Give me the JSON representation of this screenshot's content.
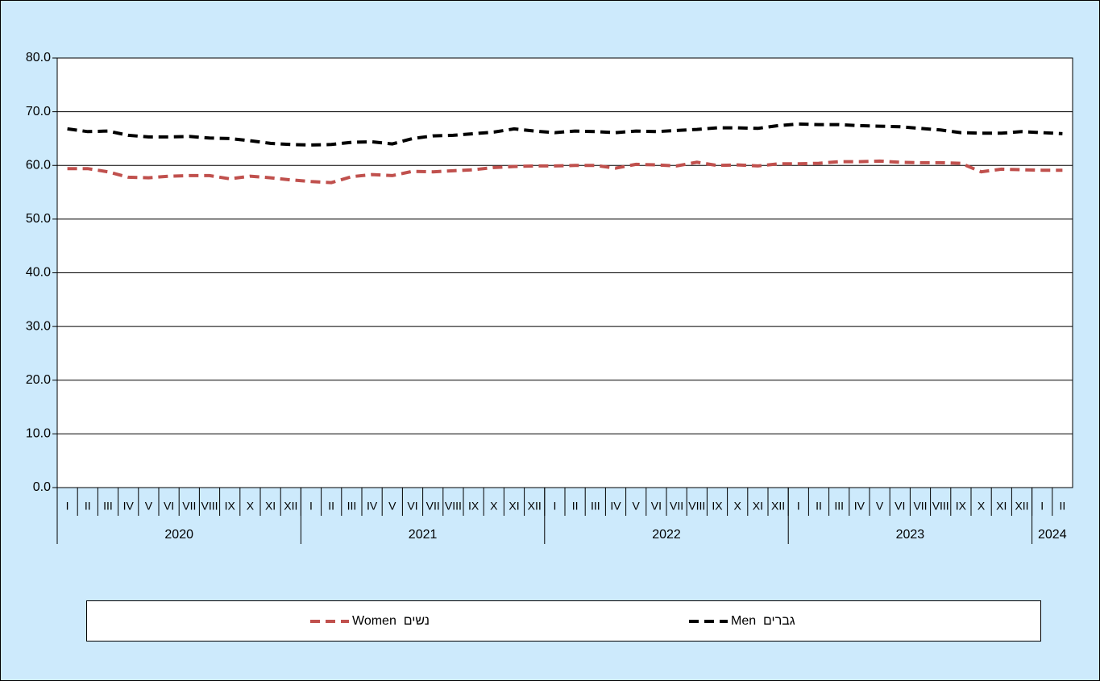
{
  "chart_data": {
    "type": "line",
    "categories": [
      "I",
      "II",
      "III",
      "IV",
      "V",
      "VI",
      "VII",
      "VIII",
      "IX",
      "X",
      "XI",
      "XII",
      "I",
      "II",
      "III",
      "IV",
      "V",
      "VI",
      "VII",
      "VIII",
      "IX",
      "X",
      "XI",
      "XII",
      "I",
      "II",
      "III",
      "IV",
      "V",
      "VI",
      "VII",
      "VIII",
      "IX",
      "X",
      "XI",
      "XII",
      "I",
      "II",
      "III",
      "IV",
      "V",
      "VI",
      "VII",
      "VIII",
      "IX",
      "X",
      "XI",
      "XII",
      "I",
      "II"
    ],
    "category_groups": [
      {
        "label": "2020",
        "span": 12
      },
      {
        "label": "2021",
        "span": 12
      },
      {
        "label": "2022",
        "span": 12
      },
      {
        "label": "2023",
        "span": 12
      },
      {
        "label": "2024",
        "span": 2
      }
    ],
    "series": [
      {
        "name": "Women  נשים",
        "color": "#c0504d",
        "values": [
          59.4,
          59.4,
          58.8,
          57.8,
          57.7,
          58.0,
          58.1,
          58.1,
          57.5,
          58.0,
          57.7,
          57.3,
          57.0,
          56.8,
          57.9,
          58.3,
          58.1,
          58.9,
          58.8,
          59.0,
          59.2,
          59.6,
          59.8,
          59.9,
          59.9,
          60.0,
          60.0,
          59.5,
          60.2,
          60.1,
          59.9,
          60.6,
          60.0,
          60.1,
          59.9,
          60.3,
          60.3,
          60.4,
          60.7,
          60.7,
          60.8,
          60.6,
          60.5,
          60.5,
          60.4,
          58.8,
          59.3,
          59.2,
          59.1,
          59.1
        ]
      },
      {
        "name": "Men  גברים",
        "color": "#000000",
        "values": [
          66.8,
          66.3,
          66.4,
          65.6,
          65.3,
          65.3,
          65.4,
          65.1,
          65.0,
          64.6,
          64.1,
          63.9,
          63.8,
          63.9,
          64.3,
          64.4,
          64.0,
          65.0,
          65.5,
          65.6,
          65.9,
          66.2,
          66.8,
          66.4,
          66.1,
          66.4,
          66.3,
          66.1,
          66.4,
          66.3,
          66.5,
          66.7,
          67.0,
          67.0,
          66.9,
          67.4,
          67.7,
          67.6,
          67.6,
          67.4,
          67.3,
          67.2,
          66.9,
          66.6,
          66.1,
          66.0,
          66.0,
          66.3,
          66.1,
          65.9
        ]
      }
    ],
    "ylim": [
      0,
      80
    ],
    "yticks": [
      {
        "value": 0,
        "label": "0.0"
      },
      {
        "value": 10,
        "label": "10.0"
      },
      {
        "value": 20,
        "label": "20.0"
      },
      {
        "value": 30,
        "label": "30.0"
      },
      {
        "value": 40,
        "label": "40.0"
      },
      {
        "value": 50,
        "label": "50.0"
      },
      {
        "value": 60,
        "label": "60.0"
      },
      {
        "value": 70,
        "label": "70.0"
      },
      {
        "value": 80,
        "label": "80.0"
      }
    ],
    "grid": true,
    "legend": "bottom"
  }
}
